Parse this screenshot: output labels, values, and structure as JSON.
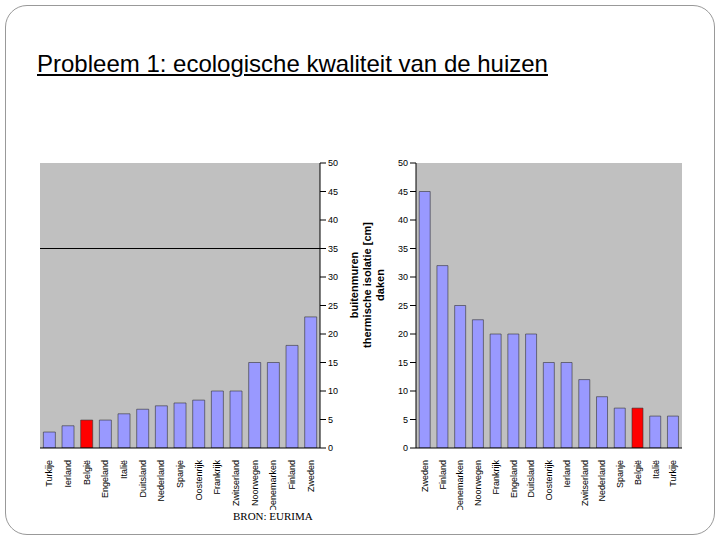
{
  "title": "Probleem 1: ecologische kwaliteit van de huizen",
  "source": "BRON: EURIMA",
  "axis_label": "thermische isolatie [cm]",
  "chart_data": [
    {
      "type": "bar",
      "title": "buitenmuren",
      "categories": [
        "Turkije",
        "Ierland",
        "België",
        "Engeland",
        "Italië",
        "Duitsland",
        "Nederland",
        "Spanje",
        "Oostenrijk",
        "Frankrijk",
        "Zwitserland",
        "Noorwegen",
        "Denemarken",
        "Finland",
        "Zweden"
      ],
      "values": [
        2.8,
        3.9,
        4.9,
        4.9,
        6,
        6.8,
        7.4,
        7.9,
        8.4,
        10,
        10,
        15,
        15,
        18,
        23
      ],
      "colors": [
        "#9999ff",
        "#9999ff",
        "#ff0000",
        "#9999ff",
        "#9999ff",
        "#9999ff",
        "#9999ff",
        "#9999ff",
        "#9999ff",
        "#9999ff",
        "#9999ff",
        "#9999ff",
        "#9999ff",
        "#9999ff",
        "#9999ff"
      ],
      "ylim": [
        0,
        50
      ],
      "yticks": [
        0,
        5,
        10,
        15,
        20,
        25,
        30,
        35,
        40,
        45,
        50
      ],
      "reference_line": 35
    },
    {
      "type": "bar",
      "title": "daken",
      "categories": [
        "Zweden",
        "Finland",
        "Denemarken",
        "Noorwegen",
        "Frankrijk",
        "Engeland",
        "Duitsland",
        "Oostenrijk",
        "Ierland",
        "Zwitserland",
        "Nederland",
        "Spanje",
        "België",
        "Italië",
        "Turkije"
      ],
      "values": [
        45,
        32,
        25,
        22.5,
        20,
        20,
        20,
        15,
        15,
        12,
        9,
        7,
        7,
        5.6,
        5.6
      ],
      "colors": [
        "#9999ff",
        "#9999ff",
        "#9999ff",
        "#9999ff",
        "#9999ff",
        "#9999ff",
        "#9999ff",
        "#9999ff",
        "#9999ff",
        "#9999ff",
        "#9999ff",
        "#9999ff",
        "#ff0000",
        "#9999ff",
        "#9999ff"
      ],
      "ylim": [
        0,
        50
      ],
      "yticks": [
        0,
        5,
        10,
        15,
        20,
        25,
        30,
        35,
        40,
        45,
        50
      ]
    }
  ]
}
